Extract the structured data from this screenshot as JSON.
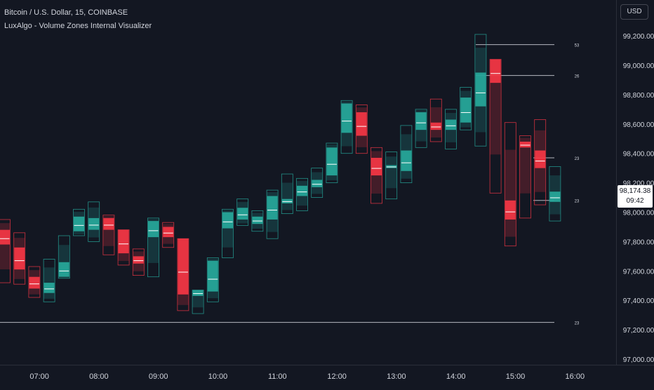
{
  "header": {
    "symbol_title": "Bitcoin / U.S. Dollar, 15, COINBASE",
    "indicator_title": "LuxAlgo - Volume Zones Internal Visualizer"
  },
  "price_axis": {
    "currency": "USD",
    "current_price": "98,174.38",
    "countdown": "09:42"
  },
  "colors": {
    "background": "#131722",
    "up_fill": "#26a69a",
    "down_fill": "#f23645",
    "up_outline": "#26a69a",
    "down_outline": "#f23645",
    "level_line": "#d1d4dc",
    "axis_text": "#d1d4dc"
  },
  "chart_data": {
    "type": "candlestick",
    "title": "Bitcoin / U.S. Dollar, 15, COINBASE",
    "xlabel": "",
    "ylabel": "",
    "ylim": [
      96950,
      99500
    ],
    "y_ticks": [
      97000,
      97200,
      97400,
      97600,
      97800,
      98000,
      98200,
      98400,
      98600,
      98800,
      99000,
      99200
    ],
    "y_tick_labels": [
      "97,000.00",
      "97,200.00",
      "97,400.00",
      "97,600.00",
      "97,800.00",
      "98,000.00",
      "98,200.00",
      "98,400.00",
      "98,600.00",
      "98,800.00",
      "99,000.00",
      "99,200.00"
    ],
    "x_tick_labels": [
      "07:00",
      "08:00",
      "09:00",
      "10:00",
      "11:00",
      "12:00",
      "13:00",
      "14:00",
      "15:00",
      "16:00"
    ],
    "x_tick_index": [
      3,
      7,
      11,
      15,
      19,
      23,
      27,
      31,
      35,
      39
    ],
    "candles": [
      {
        "o": 97880,
        "h": 97950,
        "l": 97520,
        "c": 97780
      },
      {
        "o": 97760,
        "h": 97860,
        "l": 97510,
        "c": 97610
      },
      {
        "o": 97560,
        "h": 97630,
        "l": 97420,
        "c": 97480
      },
      {
        "o": 97450,
        "h": 97680,
        "l": 97390,
        "c": 97520
      },
      {
        "o": 97560,
        "h": 97840,
        "l": 97550,
        "c": 97660
      },
      {
        "o": 97870,
        "h": 98020,
        "l": 97840,
        "c": 97970
      },
      {
        "o": 97880,
        "h": 98070,
        "l": 97800,
        "c": 97960
      },
      {
        "o": 97960,
        "h": 97980,
        "l": 97710,
        "c": 97880
      },
      {
        "o": 97880,
        "h": 97880,
        "l": 97640,
        "c": 97720
      },
      {
        "o": 97700,
        "h": 97750,
        "l": 97570,
        "c": 97650
      },
      {
        "o": 97830,
        "h": 97960,
        "l": 97560,
        "c": 97940
      },
      {
        "o": 97900,
        "h": 97930,
        "l": 97760,
        "c": 97830
      },
      {
        "o": 97820,
        "h": 97820,
        "l": 97330,
        "c": 97440
      },
      {
        "o": 97430,
        "h": 97470,
        "l": 97310,
        "c": 97470
      },
      {
        "o": 97460,
        "h": 97690,
        "l": 97390,
        "c": 97670
      },
      {
        "o": 97890,
        "h": 98020,
        "l": 97690,
        "c": 98000
      },
      {
        "o": 97950,
        "h": 98090,
        "l": 97910,
        "c": 98030
      },
      {
        "o": 97920,
        "h": 98010,
        "l": 97870,
        "c": 97970
      },
      {
        "o": 97950,
        "h": 98150,
        "l": 97820,
        "c": 98110
      },
      {
        "o": 98060,
        "h": 98260,
        "l": 97990,
        "c": 98090
      },
      {
        "o": 98110,
        "h": 98230,
        "l": 98010,
        "c": 98180
      },
      {
        "o": 98170,
        "h": 98300,
        "l": 98100,
        "c": 98220
      },
      {
        "o": 98250,
        "h": 98470,
        "l": 98200,
        "c": 98440
      },
      {
        "o": 98540,
        "h": 98760,
        "l": 98400,
        "c": 98740
      },
      {
        "o": 98680,
        "h": 98730,
        "l": 98400,
        "c": 98520
      },
      {
        "o": 98370,
        "h": 98440,
        "l": 98060,
        "c": 98250
      },
      {
        "o": 98300,
        "h": 98410,
        "l": 98090,
        "c": 98320
      },
      {
        "o": 98280,
        "h": 98590,
        "l": 98200,
        "c": 98420
      },
      {
        "o": 98560,
        "h": 98700,
        "l": 98440,
        "c": 98680
      },
      {
        "o": 98610,
        "h": 98770,
        "l": 98480,
        "c": 98560
      },
      {
        "o": 98560,
        "h": 98700,
        "l": 98430,
        "c": 98630
      },
      {
        "o": 98610,
        "h": 98850,
        "l": 98560,
        "c": 98780
      },
      {
        "o": 98720,
        "h": 99210,
        "l": 98450,
        "c": 98950
      },
      {
        "o": 99040,
        "h": 99040,
        "l": 98130,
        "c": 98880
      },
      {
        "o": 98080,
        "h": 98610,
        "l": 97770,
        "c": 97950
      },
      {
        "o": 98480,
        "h": 98520,
        "l": 97960,
        "c": 98440
      },
      {
        "o": 98420,
        "h": 98630,
        "l": 98050,
        "c": 98300
      },
      {
        "o": 98070,
        "h": 98310,
        "l": 97940,
        "c": 98140
      }
    ],
    "levels": [
      {
        "price": 99140,
        "label": "53"
      },
      {
        "price": 98930,
        "label": "26"
      },
      {
        "price": 98370,
        "label": "23"
      },
      {
        "price": 98080,
        "label": "23"
      },
      {
        "price": 97250,
        "label": "23"
      }
    ]
  }
}
